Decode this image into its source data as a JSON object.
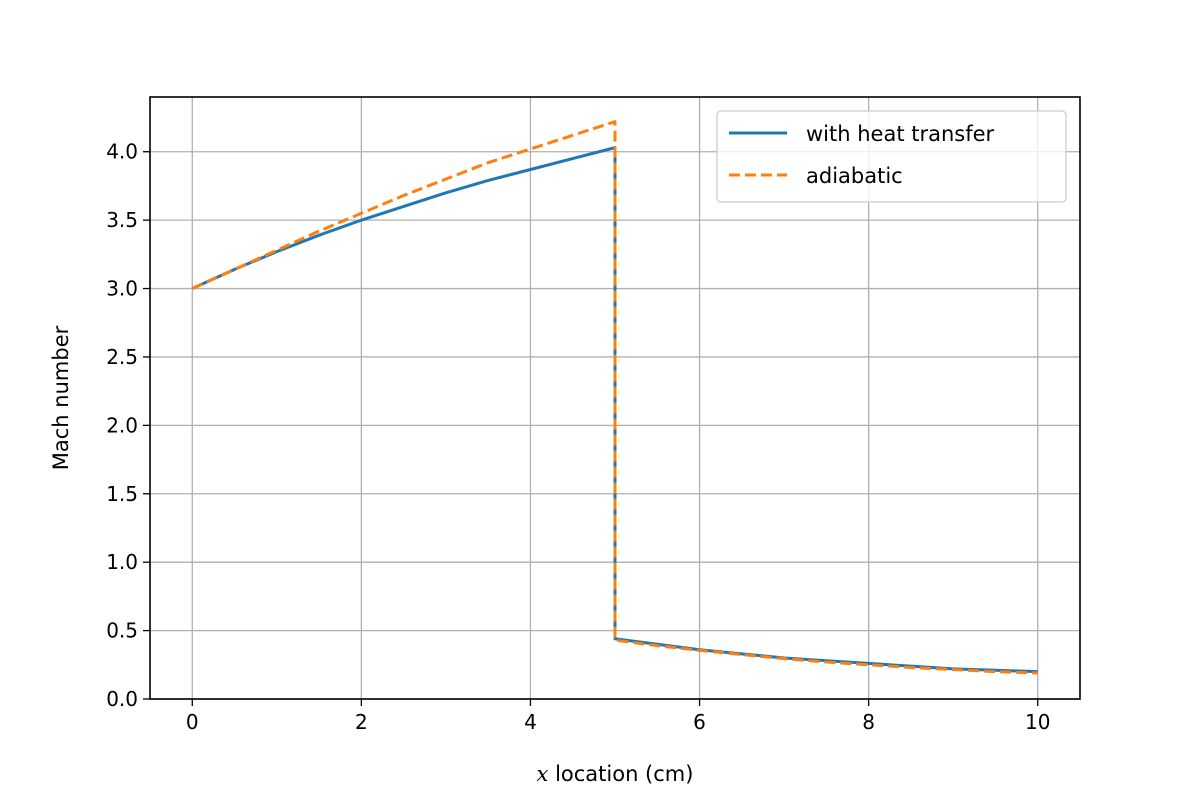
{
  "chart_data": {
    "type": "line",
    "xlabel_var": "x",
    "xlabel": "location (cm)",
    "ylabel": "Mach number",
    "xlim": [
      -0.5,
      10.5
    ],
    "ylim": [
      0.0,
      4.4
    ],
    "xticks": [
      0,
      2,
      4,
      6,
      8,
      10
    ],
    "xtick_labels": [
      "0",
      "2",
      "4",
      "6",
      "8",
      "10"
    ],
    "yticks": [
      0.0,
      0.5,
      1.0,
      1.5,
      2.0,
      2.5,
      3.0,
      3.5,
      4.0
    ],
    "ytick_labels": [
      "0.0",
      "0.5",
      "1.0",
      "1.5",
      "2.0",
      "2.5",
      "3.0",
      "3.5",
      "4.0"
    ],
    "grid": true,
    "legend_position": "top-right",
    "series": [
      {
        "name": "with heat transfer",
        "color": "#1f77b4",
        "style": "solid",
        "x": [
          0,
          0.5,
          1,
          1.5,
          2,
          2.5,
          3,
          3.5,
          4,
          4.5,
          5,
          5,
          5.5,
          6,
          6.5,
          7,
          7.5,
          8,
          8.5,
          9,
          9.5,
          10
        ],
        "y": [
          3.0,
          3.14,
          3.27,
          3.39,
          3.5,
          3.6,
          3.7,
          3.79,
          3.87,
          3.95,
          4.03,
          0.44,
          0.4,
          0.36,
          0.33,
          0.3,
          0.28,
          0.26,
          0.24,
          0.22,
          0.21,
          0.2
        ]
      },
      {
        "name": "adiabatic",
        "color": "#ff7f0e",
        "style": "dashed",
        "x": [
          0,
          0.5,
          1,
          1.5,
          2,
          2.5,
          3,
          3.5,
          4,
          4.5,
          5,
          5,
          5.5,
          6,
          6.5,
          7,
          7.5,
          8,
          8.5,
          9,
          9.5,
          10
        ],
        "y": [
          3.0,
          3.14,
          3.28,
          3.42,
          3.55,
          3.68,
          3.8,
          3.92,
          4.02,
          4.12,
          4.22,
          0.43,
          0.39,
          0.355,
          0.325,
          0.295,
          0.27,
          0.25,
          0.23,
          0.215,
          0.2,
          0.19
        ]
      }
    ]
  }
}
